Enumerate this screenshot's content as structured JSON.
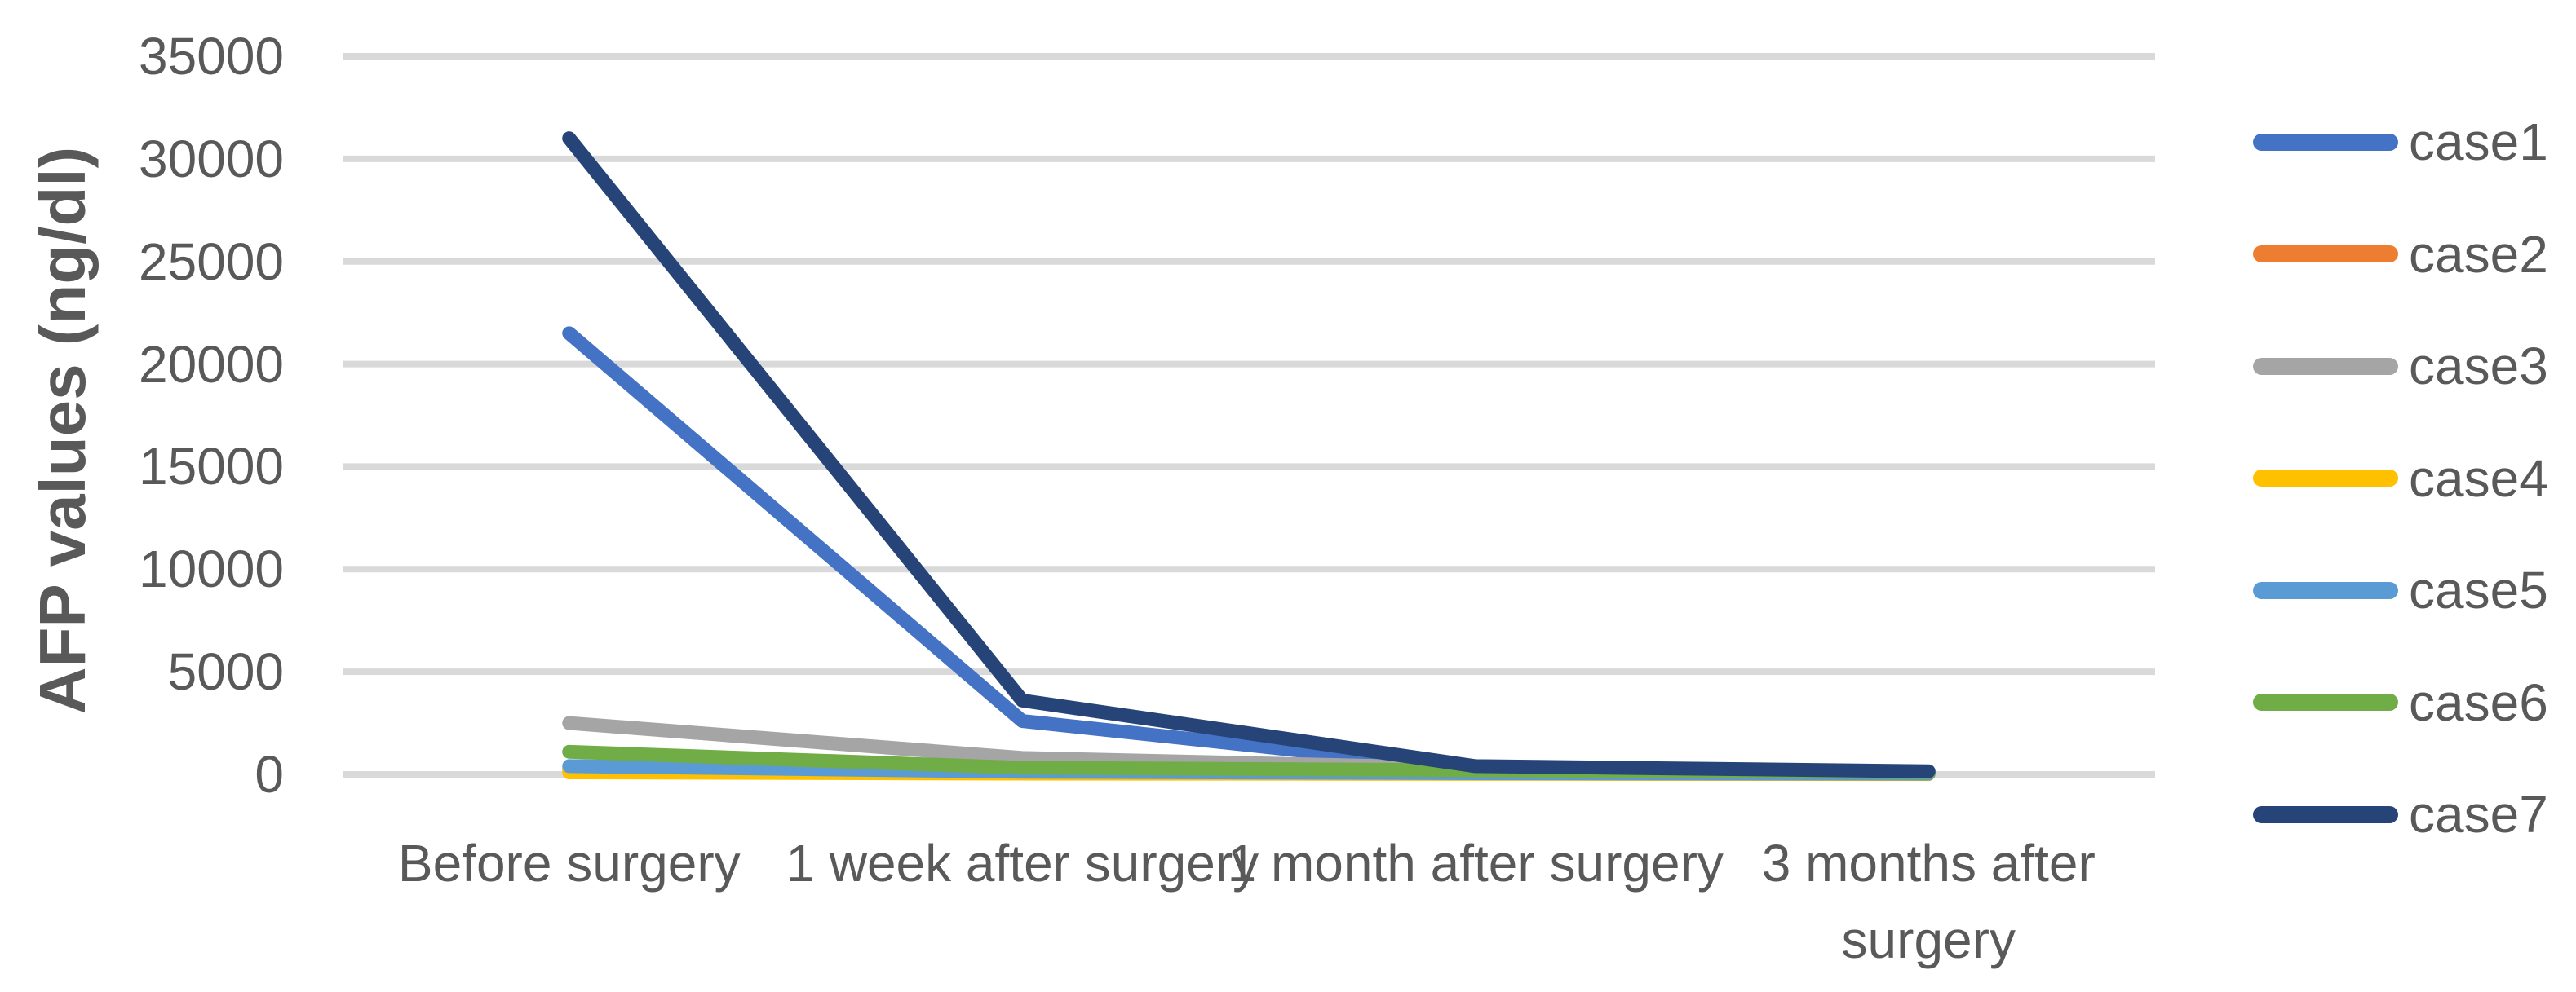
{
  "chart_data": {
    "type": "line",
    "title": "",
    "xlabel": "",
    "ylabel": "AFP values (ng/dl)",
    "categories": [
      "Before surgery",
      "1 week after surgery",
      "1 month after surgery",
      "3 months after surgery"
    ],
    "series": [
      {
        "name": "case1",
        "color": "#4472C4",
        "values": [
          21500,
          2600,
          250,
          100
        ]
      },
      {
        "name": "case2",
        "color": "#ED7D31",
        "values": [
          250,
          100,
          50,
          25
        ]
      },
      {
        "name": "case3",
        "color": "#A5A5A5",
        "values": [
          2500,
          800,
          300,
          120
        ]
      },
      {
        "name": "case4",
        "color": "#FFC000",
        "values": [
          100,
          40,
          25,
          15
        ]
      },
      {
        "name": "case5",
        "color": "#5B9BD5",
        "values": [
          400,
          130,
          60,
          35
        ]
      },
      {
        "name": "case6",
        "color": "#70AD47",
        "values": [
          1100,
          320,
          200,
          100
        ]
      },
      {
        "name": "case7",
        "color": "#264478",
        "values": [
          31000,
          3600,
          400,
          150
        ]
      }
    ],
    "y_axis": {
      "min": 0,
      "max": 35000,
      "step": 5000
    },
    "grid": true,
    "legend_position": "right",
    "colors": {
      "grid": "#D9D9D9",
      "text": "#595959",
      "background": "#FFFFFF"
    }
  }
}
